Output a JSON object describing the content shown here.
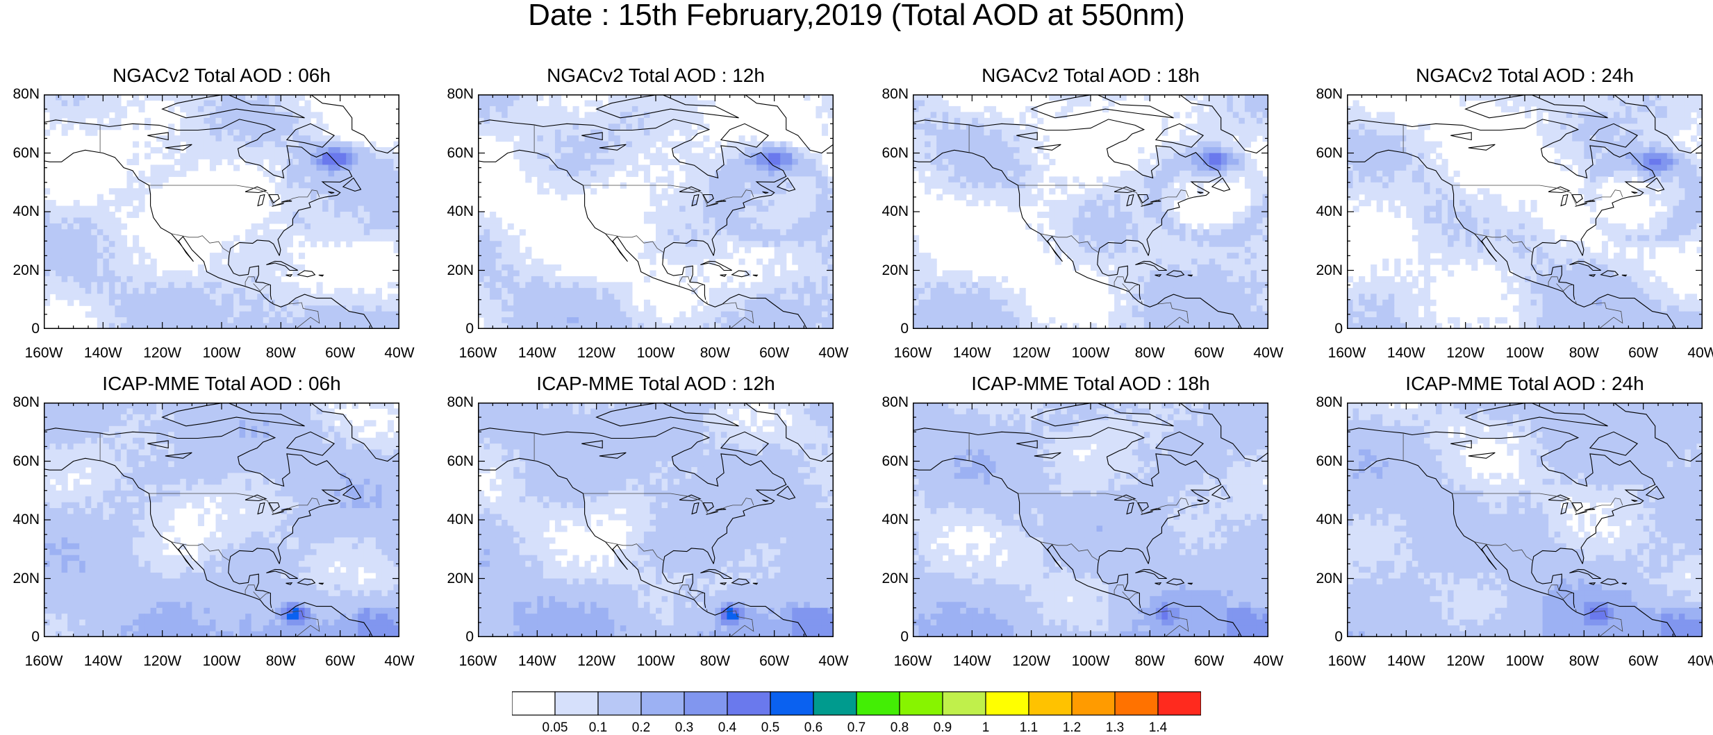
{
  "title": "Date : 15th February,2019 (Total AOD at 550nm)",
  "panels": [
    {
      "title": "NGACv2 Total AOD : 06h",
      "model": "NGACv2",
      "hour": "06h"
    },
    {
      "title": "NGACv2 Total AOD : 12h",
      "model": "NGACv2",
      "hour": "12h"
    },
    {
      "title": "NGACv2 Total AOD : 18h",
      "model": "NGACv2",
      "hour": "18h"
    },
    {
      "title": "NGACv2 Total AOD : 24h",
      "model": "NGACv2",
      "hour": "24h"
    },
    {
      "title": "ICAP-MME Total AOD : 06h",
      "model": "ICAP-MME",
      "hour": "06h"
    },
    {
      "title": "ICAP-MME Total AOD : 12h",
      "model": "ICAP-MME",
      "hour": "12h"
    },
    {
      "title": "ICAP-MME Total AOD : 18h",
      "model": "ICAP-MME",
      "hour": "18h"
    },
    {
      "title": "ICAP-MME Total AOD : 24h",
      "model": "ICAP-MME",
      "hour": "24h"
    }
  ],
  "lat_ticks": [
    "80N",
    "60N",
    "40N",
    "20N",
    "0"
  ],
  "lat_values": [
    80,
    60,
    40,
    20,
    0
  ],
  "lon_ticks": [
    "160W",
    "140W",
    "120W",
    "100W",
    "80W",
    "60W",
    "40W"
  ],
  "lon_values": [
    -160,
    -140,
    -120,
    -100,
    -80,
    -60,
    -40
  ],
  "colorbar": {
    "labels": [
      "0.05",
      "0.1",
      "0.2",
      "0.3",
      "0.4",
      "0.5",
      "0.6",
      "0.7",
      "0.8",
      "0.9",
      "1",
      "1.1",
      "1.2",
      "1.3",
      "1.4"
    ],
    "colors": [
      "#ffffff",
      "#d6e0fb",
      "#b8c8f6",
      "#9cb1f3",
      "#8196ef",
      "#6a79ed",
      "#0a61f0",
      "#009b8e",
      "#43ee05",
      "#87f400",
      "#c0f04b",
      "#ffff00",
      "#ffc200",
      "#ff9b00",
      "#ff7200",
      "#ff2a1e"
    ]
  }
}
